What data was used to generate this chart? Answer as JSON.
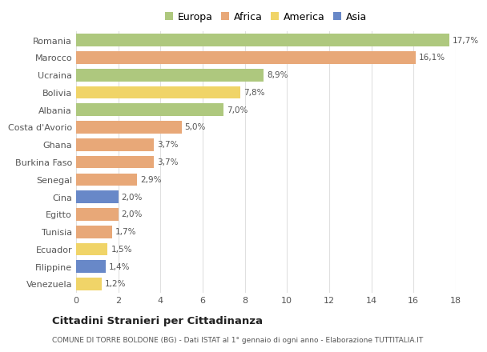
{
  "categories": [
    "Romania",
    "Marocco",
    "Ucraina",
    "Bolivia",
    "Albania",
    "Costa d'Avorio",
    "Ghana",
    "Burkina Faso",
    "Senegal",
    "Cina",
    "Egitto",
    "Tunisia",
    "Ecuador",
    "Filippine",
    "Venezuela"
  ],
  "values": [
    17.7,
    16.1,
    8.9,
    7.8,
    7.0,
    5.0,
    3.7,
    3.7,
    2.9,
    2.0,
    2.0,
    1.7,
    1.5,
    1.4,
    1.2
  ],
  "labels": [
    "17,7%",
    "16,1%",
    "8,9%",
    "7,8%",
    "7,0%",
    "5,0%",
    "3,7%",
    "3,7%",
    "2,9%",
    "2,0%",
    "2,0%",
    "1,7%",
    "1,5%",
    "1,4%",
    "1,2%"
  ],
  "continents": [
    "Europa",
    "Africa",
    "Europa",
    "America",
    "Europa",
    "Africa",
    "Africa",
    "Africa",
    "Africa",
    "Asia",
    "Africa",
    "Africa",
    "America",
    "Asia",
    "America"
  ],
  "colors": {
    "Europa": "#aec87e",
    "Africa": "#e8a878",
    "America": "#f0d468",
    "Asia": "#6888c8"
  },
  "legend_order": [
    "Europa",
    "Africa",
    "America",
    "Asia"
  ],
  "title": "Cittadini Stranieri per Cittadinanza",
  "subtitle": "COMUNE DI TORRE BOLDONE (BG) - Dati ISTAT al 1° gennaio di ogni anno - Elaborazione TUTTITALIA.IT",
  "xlim": [
    0,
    18
  ],
  "xticks": [
    0,
    2,
    4,
    6,
    8,
    10,
    12,
    14,
    16,
    18
  ],
  "background_color": "#ffffff",
  "plot_background": "#ffffff",
  "grid_color": "#e0e0e0",
  "bar_height": 0.72
}
